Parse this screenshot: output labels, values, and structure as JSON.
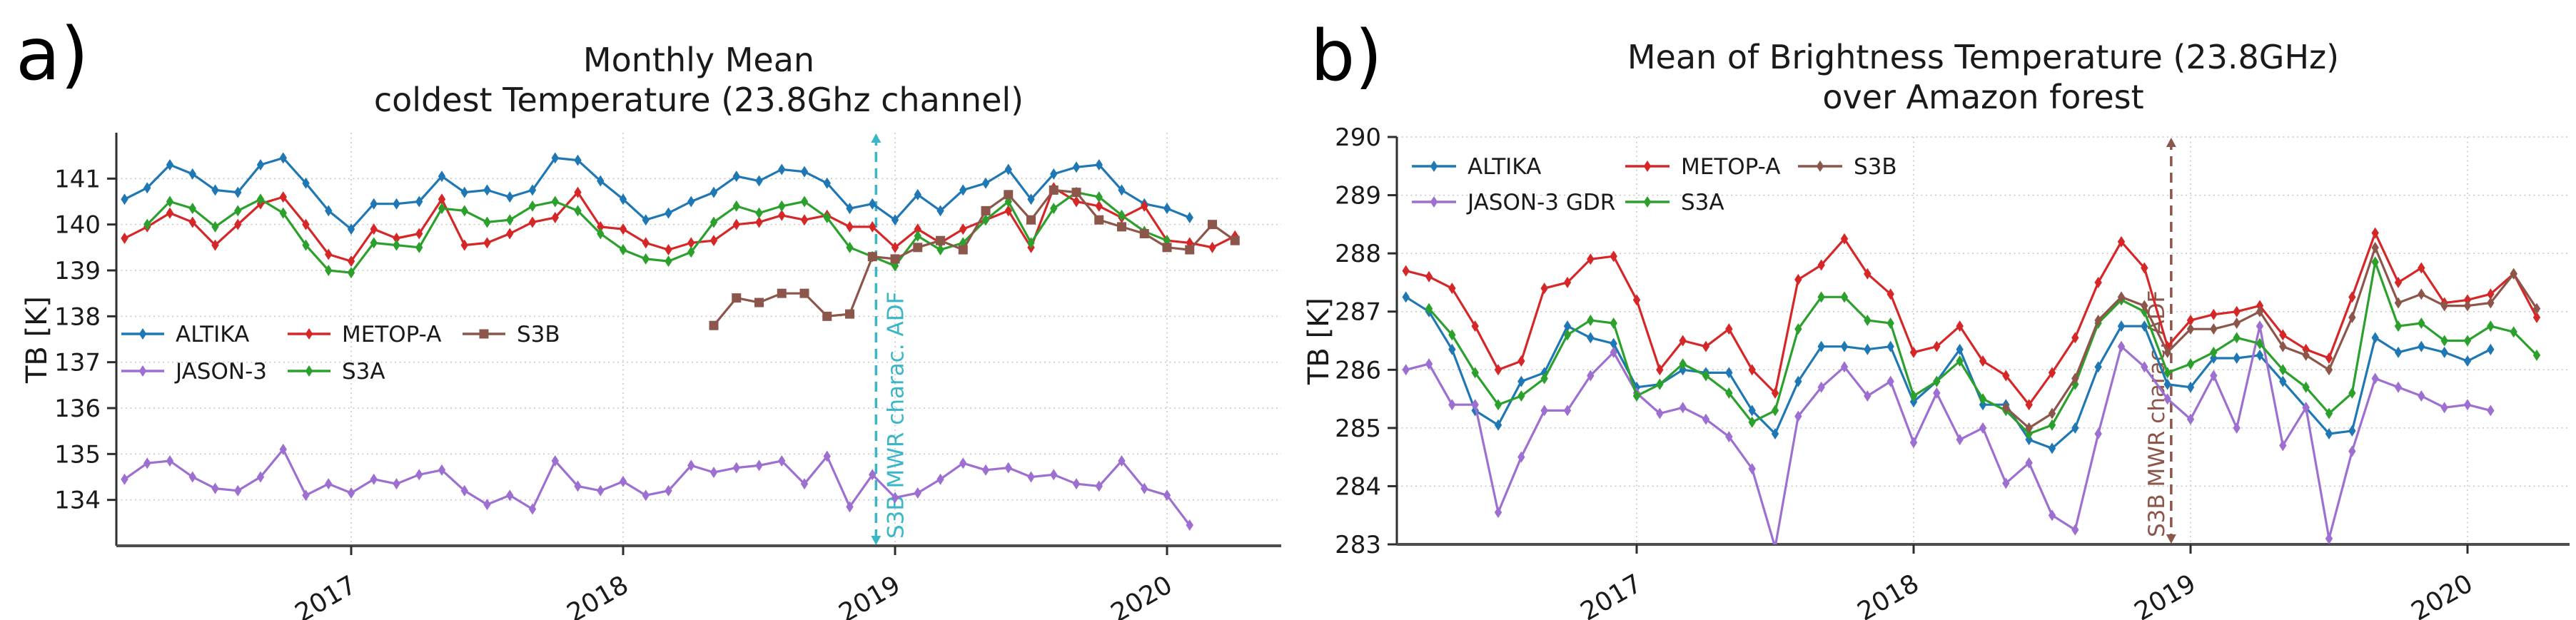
{
  "page": {
    "background": "#ffffff"
  },
  "panel_labels": [
    "a)",
    "b)"
  ],
  "chart_data": [
    {
      "type": "line",
      "title_lines": [
        "Monthly Mean",
        "coldest Temperature (23.8Ghz channel)"
      ],
      "ylabel": "TB [K]",
      "ylim": [
        133.0,
        142.0
      ],
      "yticks": [
        134,
        135,
        136,
        137,
        138,
        139,
        140,
        141
      ],
      "xticks": [
        2017,
        2018,
        2019,
        2020
      ],
      "xlim": [
        2016.14,
        2020.42
      ],
      "grid": "dotted",
      "legend_position": "inside-left",
      "legend_items": [
        {
          "series": 0,
          "col": 0,
          "row": 0
        },
        {
          "series": 1,
          "col": 0,
          "row": 1
        },
        {
          "series": 2,
          "col": 1,
          "row": 0
        },
        {
          "series": 3,
          "col": 1,
          "row": 1
        },
        {
          "series": 4,
          "col": 2,
          "row": 0
        }
      ],
      "annotation": {
        "time": 2018.93,
        "label": "S3B MWR charac. ADF",
        "color": "#3ab7c6",
        "label_side": "right"
      },
      "series": [
        {
          "name": "ALTIKA",
          "color": "#1f77b4",
          "marker": "d",
          "start": "2016-03",
          "values": [
            140.55,
            140.8,
            141.3,
            141.1,
            140.75,
            140.7,
            141.3,
            141.45,
            140.9,
            140.3,
            139.9,
            140.45,
            140.45,
            140.5,
            141.05,
            140.7,
            140.75,
            140.6,
            140.75,
            141.45,
            141.4,
            140.95,
            140.55,
            140.1,
            140.25,
            140.5,
            140.7,
            141.05,
            140.95,
            141.2,
            141.15,
            140.9,
            140.35,
            140.45,
            140.1,
            140.65,
            140.3,
            140.75,
            140.9,
            141.2,
            140.55,
            141.1,
            141.25,
            141.3,
            140.75,
            140.45,
            140.35,
            140.15
          ]
        },
        {
          "name": "JASON-3",
          "color": "#9d6fd0",
          "marker": "d",
          "start": "2016-03",
          "values": [
            134.45,
            134.8,
            134.85,
            134.5,
            134.25,
            134.2,
            134.5,
            135.1,
            134.1,
            134.35,
            134.15,
            134.45,
            134.35,
            134.55,
            134.65,
            134.2,
            133.9,
            134.1,
            133.8,
            134.85,
            134.3,
            134.2,
            134.4,
            134.1,
            134.2,
            134.75,
            134.6,
            134.7,
            134.75,
            134.85,
            134.35,
            134.95,
            133.85,
            134.55,
            134.05,
            134.15,
            134.45,
            134.8,
            134.65,
            134.7,
            134.5,
            134.55,
            134.35,
            134.3,
            134.85,
            134.25,
            134.1,
            133.45
          ]
        },
        {
          "name": "METOP-A",
          "color": "#d62728",
          "marker": "d",
          "start": "2016-03",
          "values": [
            139.7,
            139.95,
            140.25,
            140.05,
            139.55,
            140.0,
            140.45,
            140.6,
            140.0,
            139.35,
            139.2,
            139.9,
            139.7,
            139.8,
            140.55,
            139.55,
            139.6,
            139.8,
            140.05,
            140.15,
            140.7,
            139.95,
            139.9,
            139.6,
            139.45,
            139.6,
            139.65,
            140.0,
            140.05,
            140.2,
            140.1,
            140.2,
            139.95,
            139.95,
            139.5,
            139.9,
            139.6,
            139.9,
            140.1,
            140.3,
            139.5,
            140.8,
            140.5,
            140.4,
            140.15,
            140.4,
            139.65,
            139.6,
            139.5,
            139.75
          ]
        },
        {
          "name": "S3A",
          "color": "#2ca02c",
          "marker": "d",
          "start": "2016-04",
          "values": [
            140.0,
            140.5,
            140.35,
            139.95,
            140.3,
            140.55,
            140.25,
            139.55,
            139.0,
            138.95,
            139.6,
            139.55,
            139.5,
            140.35,
            140.3,
            140.05,
            140.1,
            140.4,
            140.5,
            140.3,
            139.8,
            139.45,
            139.25,
            139.2,
            139.4,
            140.05,
            140.4,
            140.25,
            140.4,
            140.5,
            140.15,
            139.5,
            139.3,
            139.1,
            139.75,
            139.45,
            139.6,
            140.1,
            140.5,
            139.6,
            140.35,
            140.7,
            140.6,
            140.2,
            139.85,
            139.65
          ]
        },
        {
          "name": "S3B",
          "color": "#8c564b",
          "marker": "s",
          "start": "2018-05",
          "values": [
            137.8,
            138.4,
            138.3,
            138.5,
            138.5,
            138.0,
            138.05,
            139.3,
            139.25,
            139.5,
            139.65,
            139.45,
            140.3,
            140.65,
            140.1,
            140.75,
            140.7,
            140.1,
            139.95,
            139.8,
            139.5,
            139.45,
            140.0,
            139.65
          ]
        }
      ]
    },
    {
      "type": "line",
      "title_lines": [
        "Mean of Brightness Temperature (23.8GHz)",
        "over Amazon forest"
      ],
      "ylabel": "TB [K]",
      "ylim": [
        283.0,
        290.0
      ],
      "yticks": [
        283,
        284,
        285,
        286,
        287,
        288,
        289,
        290
      ],
      "xticks": [
        2017,
        2018,
        2019,
        2020
      ],
      "xlim": [
        2016.13,
        2020.37
      ],
      "grid": "dotted",
      "legend_position": "inside-left",
      "legend_items": [
        {
          "series": 0,
          "col": 0,
          "row": 0
        },
        {
          "series": 1,
          "col": 0,
          "row": 1
        },
        {
          "series": 2,
          "col": 1,
          "row": 0
        },
        {
          "series": 3,
          "col": 1,
          "row": 1
        },
        {
          "series": 4,
          "col": 2,
          "row": 0
        }
      ],
      "annotation": {
        "time": 2018.93,
        "label": "S3B MWR charac. ADF",
        "color": "#8c564b",
        "label_side": "left"
      },
      "series": [
        {
          "name": "ALTIKA",
          "color": "#1f77b4",
          "marker": "d",
          "start": "2016-03",
          "values": [
            287.25,
            287.0,
            286.35,
            285.3,
            285.05,
            285.8,
            285.95,
            286.75,
            286.55,
            286.45,
            285.7,
            285.75,
            286.0,
            285.95,
            285.95,
            285.3,
            284.9,
            285.8,
            286.4,
            286.4,
            286.35,
            286.4,
            285.45,
            285.8,
            286.35,
            285.4,
            285.4,
            284.8,
            284.65,
            285.0,
            286.05,
            286.75,
            286.75,
            285.75,
            285.7,
            286.2,
            286.2,
            286.25,
            285.8,
            285.35,
            284.9,
            284.95,
            286.55,
            286.3,
            286.4,
            286.3,
            286.15,
            286.35
          ]
        },
        {
          "name": "JASON-3 GDR",
          "color": "#9d6fd0",
          "marker": "d",
          "start": "2016-03",
          "values": [
            286.0,
            286.1,
            285.4,
            285.4,
            283.55,
            284.5,
            285.3,
            285.3,
            285.9,
            286.3,
            285.6,
            285.25,
            285.35,
            285.15,
            284.85,
            284.3,
            282.95,
            285.2,
            285.7,
            286.05,
            285.55,
            285.8,
            284.75,
            285.6,
            284.8,
            285.0,
            284.05,
            284.4,
            283.5,
            283.25,
            284.9,
            286.4,
            286.05,
            285.5,
            285.15,
            285.9,
            285.0,
            286.75,
            284.7,
            285.35,
            283.1,
            284.6,
            285.85,
            285.7,
            285.55,
            285.35,
            285.4,
            285.3
          ]
        },
        {
          "name": "METOP-A",
          "color": "#d62728",
          "marker": "d",
          "start": "2016-03",
          "values": [
            287.7,
            287.6,
            287.4,
            286.75,
            286.0,
            286.15,
            287.4,
            287.5,
            287.9,
            287.95,
            287.2,
            286.0,
            286.5,
            286.4,
            286.7,
            286.0,
            285.6,
            287.55,
            287.8,
            288.25,
            287.65,
            287.3,
            286.3,
            286.4,
            286.75,
            286.15,
            285.9,
            285.4,
            285.95,
            286.55,
            287.5,
            288.2,
            287.75,
            286.4,
            286.85,
            286.95,
            287.0,
            287.1,
            286.6,
            286.35,
            286.2,
            287.25,
            288.35,
            287.5,
            287.75,
            287.15,
            287.2,
            287.3,
            287.65,
            286.9
          ]
        },
        {
          "name": "S3A",
          "color": "#2ca02c",
          "marker": "d",
          "start": "2016-04",
          "values": [
            287.05,
            286.6,
            285.95,
            285.4,
            285.55,
            285.85,
            286.6,
            286.85,
            286.8,
            285.55,
            285.75,
            286.1,
            285.9,
            285.6,
            285.1,
            285.3,
            286.7,
            287.25,
            287.25,
            286.85,
            286.8,
            285.55,
            285.8,
            286.15,
            285.5,
            285.3,
            284.9,
            285.05,
            285.75,
            286.8,
            287.2,
            287.0,
            285.95,
            286.1,
            286.3,
            286.55,
            286.45,
            286.0,
            285.7,
            285.25,
            285.6,
            287.85,
            286.75,
            286.8,
            286.5,
            286.5,
            286.75,
            286.65,
            286.25
          ]
        },
        {
          "name": "S3B",
          "color": "#8c564b",
          "marker": "d",
          "start": "2018-05",
          "values": [
            285.35,
            285.0,
            285.25,
            285.85,
            286.85,
            287.25,
            287.1,
            286.3,
            286.7,
            286.7,
            286.8,
            287.0,
            286.4,
            286.25,
            286.0,
            286.9,
            288.1,
            287.15,
            287.3,
            287.1,
            287.1,
            287.15,
            287.65,
            287.05
          ]
        }
      ]
    }
  ]
}
